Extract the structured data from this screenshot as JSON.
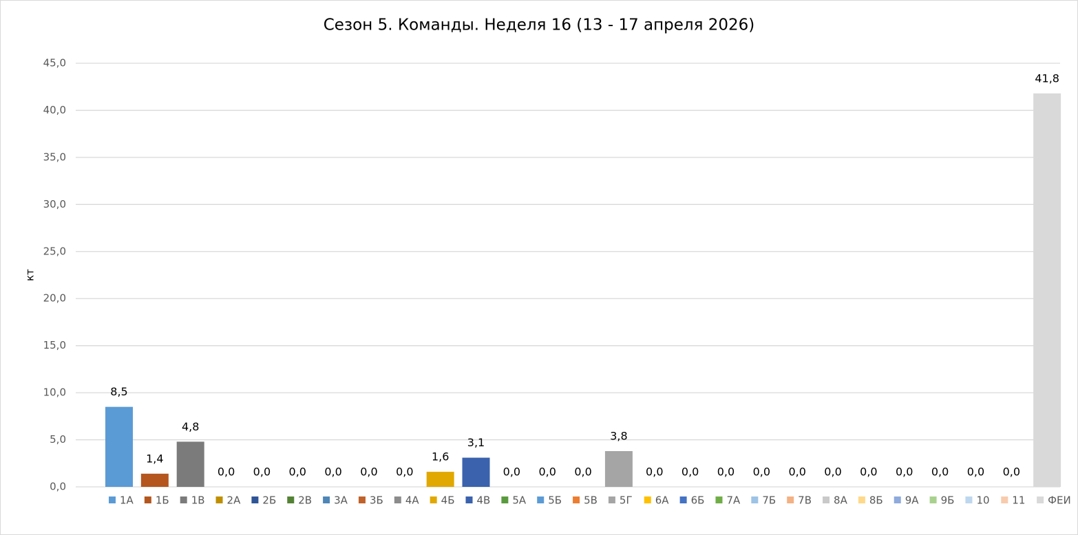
{
  "chart_data": {
    "type": "bar",
    "title": "Сезон 5. Команды. Неделя 16 (13 - 17 апреля 2026)",
    "y_label": "кт",
    "categories": [
      "1А",
      "1Б",
      "1В",
      "2А",
      "2Б",
      "2В",
      "3А",
      "3Б",
      "4А",
      "4Б",
      "4В",
      "5А",
      "5Б",
      "5В",
      "5Г",
      "6А",
      "6Б",
      "7А",
      "7Б",
      "7В",
      "8А",
      "8Б",
      "9А",
      "9Б",
      "10",
      "11",
      "ФЕИ"
    ],
    "values": [
      8.5,
      1.4,
      4.8,
      0,
      0,
      0,
      0,
      0,
      0,
      1.6,
      3.1,
      0,
      0,
      0,
      3.8,
      0,
      0,
      0,
      0,
      0,
      0,
      0,
      0,
      0,
      0,
      0,
      41.8
    ],
    "value_labels": [
      "8,5",
      "1,4",
      "4,8",
      "0,0",
      "0,0",
      "0,0",
      "0,0",
      "0,0",
      "0,0",
      "1,6",
      "3,1",
      "0,0",
      "0,0",
      "0,0",
      "3,8",
      "0,0",
      "0,0",
      "0,0",
      "0,0",
      "0,0",
      "0,0",
      "0,0",
      "0,0",
      "0,0",
      "0,0",
      "0,0",
      "41,8"
    ],
    "colors": [
      "#5b9bd5",
      "#b4561e",
      "#7b7b7b",
      "#bf8f00",
      "#2f5597",
      "#548235",
      "#4e86b8",
      "#c0622a",
      "#8c8c8c",
      "#e0a800",
      "#3a62ad",
      "#5a9a3e",
      "#5b9bd5",
      "#ed7d31",
      "#a5a5a5",
      "#ffc000",
      "#4472c4",
      "#70ad47",
      "#9dc3e6",
      "#f4b183",
      "#c9c9c9",
      "#ffd98a",
      "#8faadc",
      "#a9d18e",
      "#bdd7ee",
      "#f8cbad",
      "#d9d9d9"
    ],
    "ylim": [
      0,
      45
    ],
    "yticks": [
      {
        "value": 0,
        "label": "0,0"
      },
      {
        "value": 5,
        "label": "5,0"
      },
      {
        "value": 10,
        "label": "10,0"
      },
      {
        "value": 15,
        "label": "15,0"
      },
      {
        "value": 20,
        "label": "20,0"
      },
      {
        "value": 25,
        "label": "25,0"
      },
      {
        "value": 30,
        "label": "30,0"
      },
      {
        "value": 35,
        "label": "35,0"
      },
      {
        "value": 40,
        "label": "40,0"
      },
      {
        "value": 45,
        "label": "45,0"
      }
    ],
    "grid": true,
    "legend": "bottom"
  }
}
